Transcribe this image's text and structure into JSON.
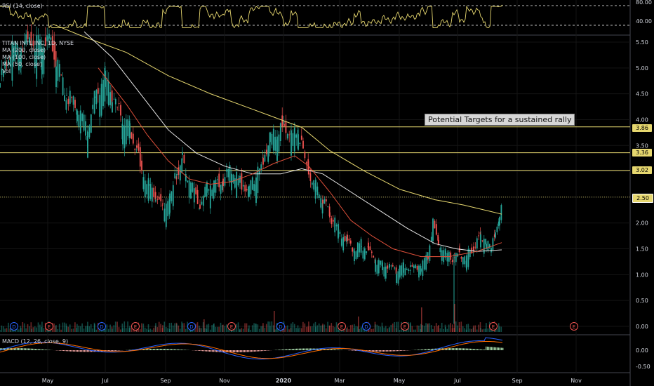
{
  "chart_data": [
    {
      "type": "line",
      "title": "TITAN INTL INC, 1D, NYSE",
      "x_ticks": [
        "May",
        "Jul",
        "Sep",
        "Nov",
        "2020",
        "Mar",
        "May",
        "Jul",
        "Sep",
        "Nov"
      ],
      "ylim": [
        -0.05,
        5.7
      ],
      "y_ticks": [
        "0.00",
        "0.50",
        "1.00",
        "1.50",
        "2.00",
        "2.50",
        "3.00",
        "3.50",
        "4.00",
        "4.50",
        "5.00",
        "5.50"
      ],
      "legend_labels": [
        "TITAN INTL INC, 1D, NYSE",
        "MA (200, close)",
        "MA (100, close)",
        "MA (50, close)",
        "Vol"
      ],
      "series": [
        {
          "name": "MA (200, close)",
          "color": "#e6d76f",
          "x": [
            75,
            120,
            180,
            240,
            300,
            360,
            400,
            430,
            470,
            520,
            570,
            620,
            660,
            700,
            715
          ],
          "y": [
            5.85,
            5.6,
            5.3,
            4.85,
            4.5,
            4.2,
            4.0,
            3.85,
            3.4,
            3.0,
            2.65,
            2.45,
            2.35,
            2.22,
            2.17
          ]
        },
        {
          "name": "MA (100, close)",
          "color": "#e6e6e6",
          "x": [
            120,
            160,
            200,
            240,
            280,
            320,
            360,
            400,
            430,
            460,
            500,
            540,
            580,
            620,
            650,
            680,
            715
          ],
          "y": [
            5.7,
            5.2,
            4.5,
            3.8,
            3.35,
            3.1,
            2.95,
            2.95,
            3.05,
            2.95,
            2.6,
            2.25,
            1.9,
            1.6,
            1.5,
            1.45,
            1.48
          ]
        },
        {
          "name": "MA (50, close)",
          "color": "#e0503a",
          "x": [
            140,
            180,
            210,
            240,
            270,
            300,
            330,
            360,
            390,
            420,
            440,
            470,
            500,
            530,
            560,
            600,
            640,
            680,
            715
          ],
          "y": [
            5.0,
            4.3,
            3.7,
            3.2,
            2.85,
            2.75,
            2.8,
            2.95,
            3.15,
            3.3,
            3.1,
            2.6,
            2.05,
            1.75,
            1.5,
            1.35,
            1.35,
            1.45,
            1.62
          ]
        }
      ],
      "price_line_y": 2.5,
      "price_path": [
        [
          0,
          4.8
        ],
        [
          15,
          5.45
        ],
        [
          30,
          5.55
        ],
        [
          45,
          5.6
        ],
        [
          60,
          5.5
        ],
        [
          70,
          5.6
        ],
        [
          80,
          5.25
        ],
        [
          95,
          4.6
        ],
        [
          110,
          4.3
        ],
        [
          125,
          3.9
        ],
        [
          135,
          4.5
        ],
        [
          150,
          5.0
        ],
        [
          160,
          4.5
        ],
        [
          175,
          4.1
        ],
        [
          185,
          3.95
        ],
        [
          195,
          3.5
        ],
        [
          202,
          3.0
        ],
        [
          212,
          2.85
        ],
        [
          222,
          2.6
        ],
        [
          232,
          2.35
        ],
        [
          242,
          2.55
        ],
        [
          252,
          3.05
        ],
        [
          260,
          3.3
        ],
        [
          272,
          2.8
        ],
        [
          285,
          2.4
        ],
        [
          295,
          2.75
        ],
        [
          305,
          2.85
        ],
        [
          318,
          2.9
        ],
        [
          330,
          3.1
        ],
        [
          342,
          2.85
        ],
        [
          355,
          2.75
        ],
        [
          365,
          2.95
        ],
        [
          375,
          3.3
        ],
        [
          385,
          3.7
        ],
        [
          395,
          3.85
        ],
        [
          405,
          3.95
        ],
        [
          415,
          3.75
        ],
        [
          425,
          3.9
        ],
        [
          432,
          3.4
        ],
        [
          440,
          3.05
        ],
        [
          450,
          2.8
        ],
        [
          460,
          2.5
        ],
        [
          470,
          2.2
        ],
        [
          482,
          1.95
        ],
        [
          495,
          1.7
        ],
        [
          505,
          1.55
        ],
        [
          515,
          1.65
        ],
        [
          525,
          1.5
        ],
        [
          535,
          1.35
        ],
        [
          545,
          1.25
        ],
        [
          555,
          1.2
        ],
        [
          565,
          1.15
        ],
        [
          575,
          1.2
        ],
        [
          585,
          1.18
        ],
        [
          600,
          1.25
        ],
        [
          610,
          1.45
        ],
        [
          617,
          2.05
        ],
        [
          625,
          1.65
        ],
        [
          635,
          1.5
        ],
        [
          645,
          1.35
        ],
        [
          655,
          1.45
        ],
        [
          665,
          1.4
        ],
        [
          675,
          1.6
        ],
        [
          685,
          1.8
        ],
        [
          693,
          1.75
        ],
        [
          700,
          1.55
        ],
        [
          706,
          1.9
        ],
        [
          712,
          2.15
        ],
        [
          716,
          2.5
        ]
      ],
      "low_wick": {
        "x": 647,
        "from": 1.4,
        "to": 0.05
      },
      "horizontal_levels": [
        {
          "value": 3.86,
          "label": "3.86",
          "color": "#e6d76f"
        },
        {
          "value": 3.36,
          "label": "3.36",
          "color": "#e6d76f"
        },
        {
          "value": 3.02,
          "label": "3.02",
          "color": "#e6d76f"
        }
      ],
      "current_price": {
        "value": 2.5,
        "label": "2.50",
        "color": "#e6d76f"
      },
      "annotation": "Potential Targets for a sustained rally",
      "event_markers": [
        {
          "x": 20,
          "letter": "D"
        },
        {
          "x": 70,
          "letter": "E"
        },
        {
          "x": 145,
          "letter": "D"
        },
        {
          "x": 193,
          "letter": "E"
        },
        {
          "x": 273,
          "letter": "D"
        },
        {
          "x": 330,
          "letter": "E"
        },
        {
          "x": 400,
          "letter": "D"
        },
        {
          "x": 487,
          "letter": "E"
        },
        {
          "x": 522,
          "letter": "D"
        },
        {
          "x": 577,
          "letter": "E"
        },
        {
          "x": 703,
          "letter": "E"
        },
        {
          "x": 818,
          "letter": "E"
        }
      ]
    },
    {
      "type": "line",
      "title": "RSI (14, close)",
      "y_ticks": [
        "80.00",
        "40.00"
      ],
      "levels": [
        70,
        30
      ]
    },
    {
      "type": "line",
      "title": "MACD (12, 26, close, 9)",
      "y_ticks": [
        "0.00",
        "-0.50"
      ]
    }
  ],
  "colors": {
    "background": "#000000",
    "grid": "#1a1a1a",
    "up": "#26a69a",
    "down": "#ef5350",
    "level": "#e6d76f",
    "rsi": "#e6d76f",
    "macd": "#2962ff",
    "signal": "#ff6d00"
  }
}
